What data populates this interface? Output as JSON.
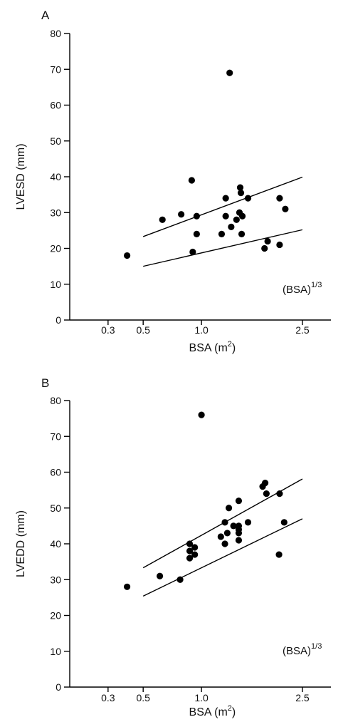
{
  "chart_data": [
    {
      "type": "scatter",
      "panel_label": "A",
      "title": "",
      "xlabel": "BSA (m",
      "xlabel_sup": "2",
      "xlabel_close": ")",
      "ylabel": "LVESD (mm)",
      "x_scale": "cube-root (BSA^(1/3))",
      "x_ticks": [
        "0.3",
        "0.5",
        "1.0",
        "2.5"
      ],
      "x_tick_values": [
        0.3,
        0.5,
        1.0,
        2.5
      ],
      "xlim": [
        0.15,
        3.1
      ],
      "ylim": [
        0,
        80
      ],
      "y_ticks": [
        "0",
        "10",
        "20",
        "30",
        "40",
        "50",
        "60",
        "70",
        "80"
      ],
      "y_tick_values": [
        0,
        10,
        20,
        30,
        40,
        50,
        60,
        70,
        80
      ],
      "annotation": "(BSA)",
      "annotation_sup": "1/3",
      "points": [
        {
          "x": 0.4,
          "y": 18
        },
        {
          "x": 0.64,
          "y": 28
        },
        {
          "x": 0.8,
          "y": 29.5
        },
        {
          "x": 0.9,
          "y": 39
        },
        {
          "x": 0.91,
          "y": 19
        },
        {
          "x": 0.95,
          "y": 29
        },
        {
          "x": 0.95,
          "y": 24
        },
        {
          "x": 1.23,
          "y": 24
        },
        {
          "x": 1.28,
          "y": 34
        },
        {
          "x": 1.28,
          "y": 29
        },
        {
          "x": 1.33,
          "y": 69
        },
        {
          "x": 1.35,
          "y": 26
        },
        {
          "x": 1.42,
          "y": 28
        },
        {
          "x": 1.46,
          "y": 30
        },
        {
          "x": 1.47,
          "y": 37
        },
        {
          "x": 1.48,
          "y": 35.5
        },
        {
          "x": 1.49,
          "y": 24
        },
        {
          "x": 1.5,
          "y": 29
        },
        {
          "x": 1.58,
          "y": 34
        },
        {
          "x": 1.83,
          "y": 20
        },
        {
          "x": 1.88,
          "y": 22
        },
        {
          "x": 2.08,
          "y": 34
        },
        {
          "x": 2.08,
          "y": 21
        },
        {
          "x": 2.18,
          "y": 31
        }
      ],
      "lines": [
        {
          "x": [
            0.5,
            2.5
          ],
          "y": [
            23.3,
            39.9
          ]
        },
        {
          "x": [
            0.5,
            2.5
          ],
          "y": [
            15.0,
            25.2
          ]
        }
      ]
    },
    {
      "type": "scatter",
      "panel_label": "B",
      "title": "",
      "xlabel": "BSA (m",
      "xlabel_sup": "2",
      "xlabel_close": ")",
      "ylabel": "LVEDD (mm)",
      "x_scale": "cube-root (BSA^(1/3))",
      "x_ticks": [
        "0.3",
        "0.5",
        "1.0",
        "2.5"
      ],
      "x_tick_values": [
        0.3,
        0.5,
        1.0,
        2.5
      ],
      "xlim": [
        0.15,
        3.1
      ],
      "ylim": [
        0,
        80
      ],
      "y_ticks": [
        "0",
        "10",
        "20",
        "30",
        "40",
        "50",
        "60",
        "70",
        "80"
      ],
      "y_tick_values": [
        0,
        10,
        20,
        30,
        40,
        50,
        60,
        70,
        80
      ],
      "annotation": "(BSA)",
      "annotation_sup": "1/3",
      "points": [
        {
          "x": 0.4,
          "y": 28
        },
        {
          "x": 0.62,
          "y": 31
        },
        {
          "x": 0.79,
          "y": 30
        },
        {
          "x": 0.88,
          "y": 40
        },
        {
          "x": 0.88,
          "y": 38
        },
        {
          "x": 0.88,
          "y": 36
        },
        {
          "x": 0.93,
          "y": 39
        },
        {
          "x": 0.93,
          "y": 37
        },
        {
          "x": 1.0,
          "y": 76
        },
        {
          "x": 1.22,
          "y": 42
        },
        {
          "x": 1.27,
          "y": 46
        },
        {
          "x": 1.27,
          "y": 40
        },
        {
          "x": 1.3,
          "y": 43
        },
        {
          "x": 1.32,
          "y": 50
        },
        {
          "x": 1.38,
          "y": 45
        },
        {
          "x": 1.45,
          "y": 52
        },
        {
          "x": 1.45,
          "y": 45
        },
        {
          "x": 1.45,
          "y": 44
        },
        {
          "x": 1.45,
          "y": 43
        },
        {
          "x": 1.45,
          "y": 41
        },
        {
          "x": 1.58,
          "y": 46
        },
        {
          "x": 1.8,
          "y": 56
        },
        {
          "x": 1.84,
          "y": 57
        },
        {
          "x": 1.86,
          "y": 54
        },
        {
          "x": 2.07,
          "y": 37
        },
        {
          "x": 2.08,
          "y": 54
        },
        {
          "x": 2.16,
          "y": 46
        }
      ],
      "lines": [
        {
          "x": [
            0.5,
            2.5
          ],
          "y": [
            33.3,
            58.1
          ]
        },
        {
          "x": [
            0.5,
            2.5
          ],
          "y": [
            25.4,
            47.0
          ]
        }
      ]
    }
  ]
}
